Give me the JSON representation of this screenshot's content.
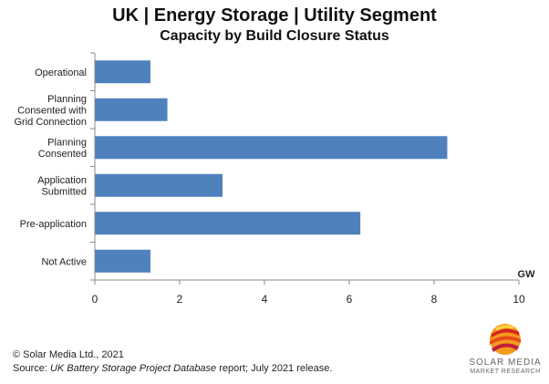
{
  "title": "UK | Energy Storage | Utility Segment",
  "subtitle": "Capacity by Build Closure Status",
  "chart_data": {
    "type": "bar",
    "orientation": "horizontal",
    "categories": [
      [
        "Operational"
      ],
      [
        "Planning",
        "Consented with",
        "Grid Connection"
      ],
      [
        "Planning",
        "Consented"
      ],
      [
        "Application",
        "Submitted"
      ],
      [
        "Pre-application"
      ],
      [
        "Not Active"
      ]
    ],
    "values": [
      1.3,
      1.7,
      8.3,
      3.0,
      6.25,
      1.3
    ],
    "xlim": [
      0,
      10
    ],
    "xticks": [
      "0",
      "2",
      "4",
      "6",
      "8",
      "10"
    ],
    "xunit": "GW",
    "grid": false,
    "bar_color": "#4F81BD"
  },
  "footer": {
    "copyright": "© Solar Media Ltd., 2021",
    "source_prefix": "Source: ",
    "source_italic": "UK Battery Storage Project Database",
    "source_suffix": " report; July 2021 release."
  },
  "logo": {
    "line1": "SOLAR MEDIA",
    "line2": "MARKET RESEARCH"
  }
}
